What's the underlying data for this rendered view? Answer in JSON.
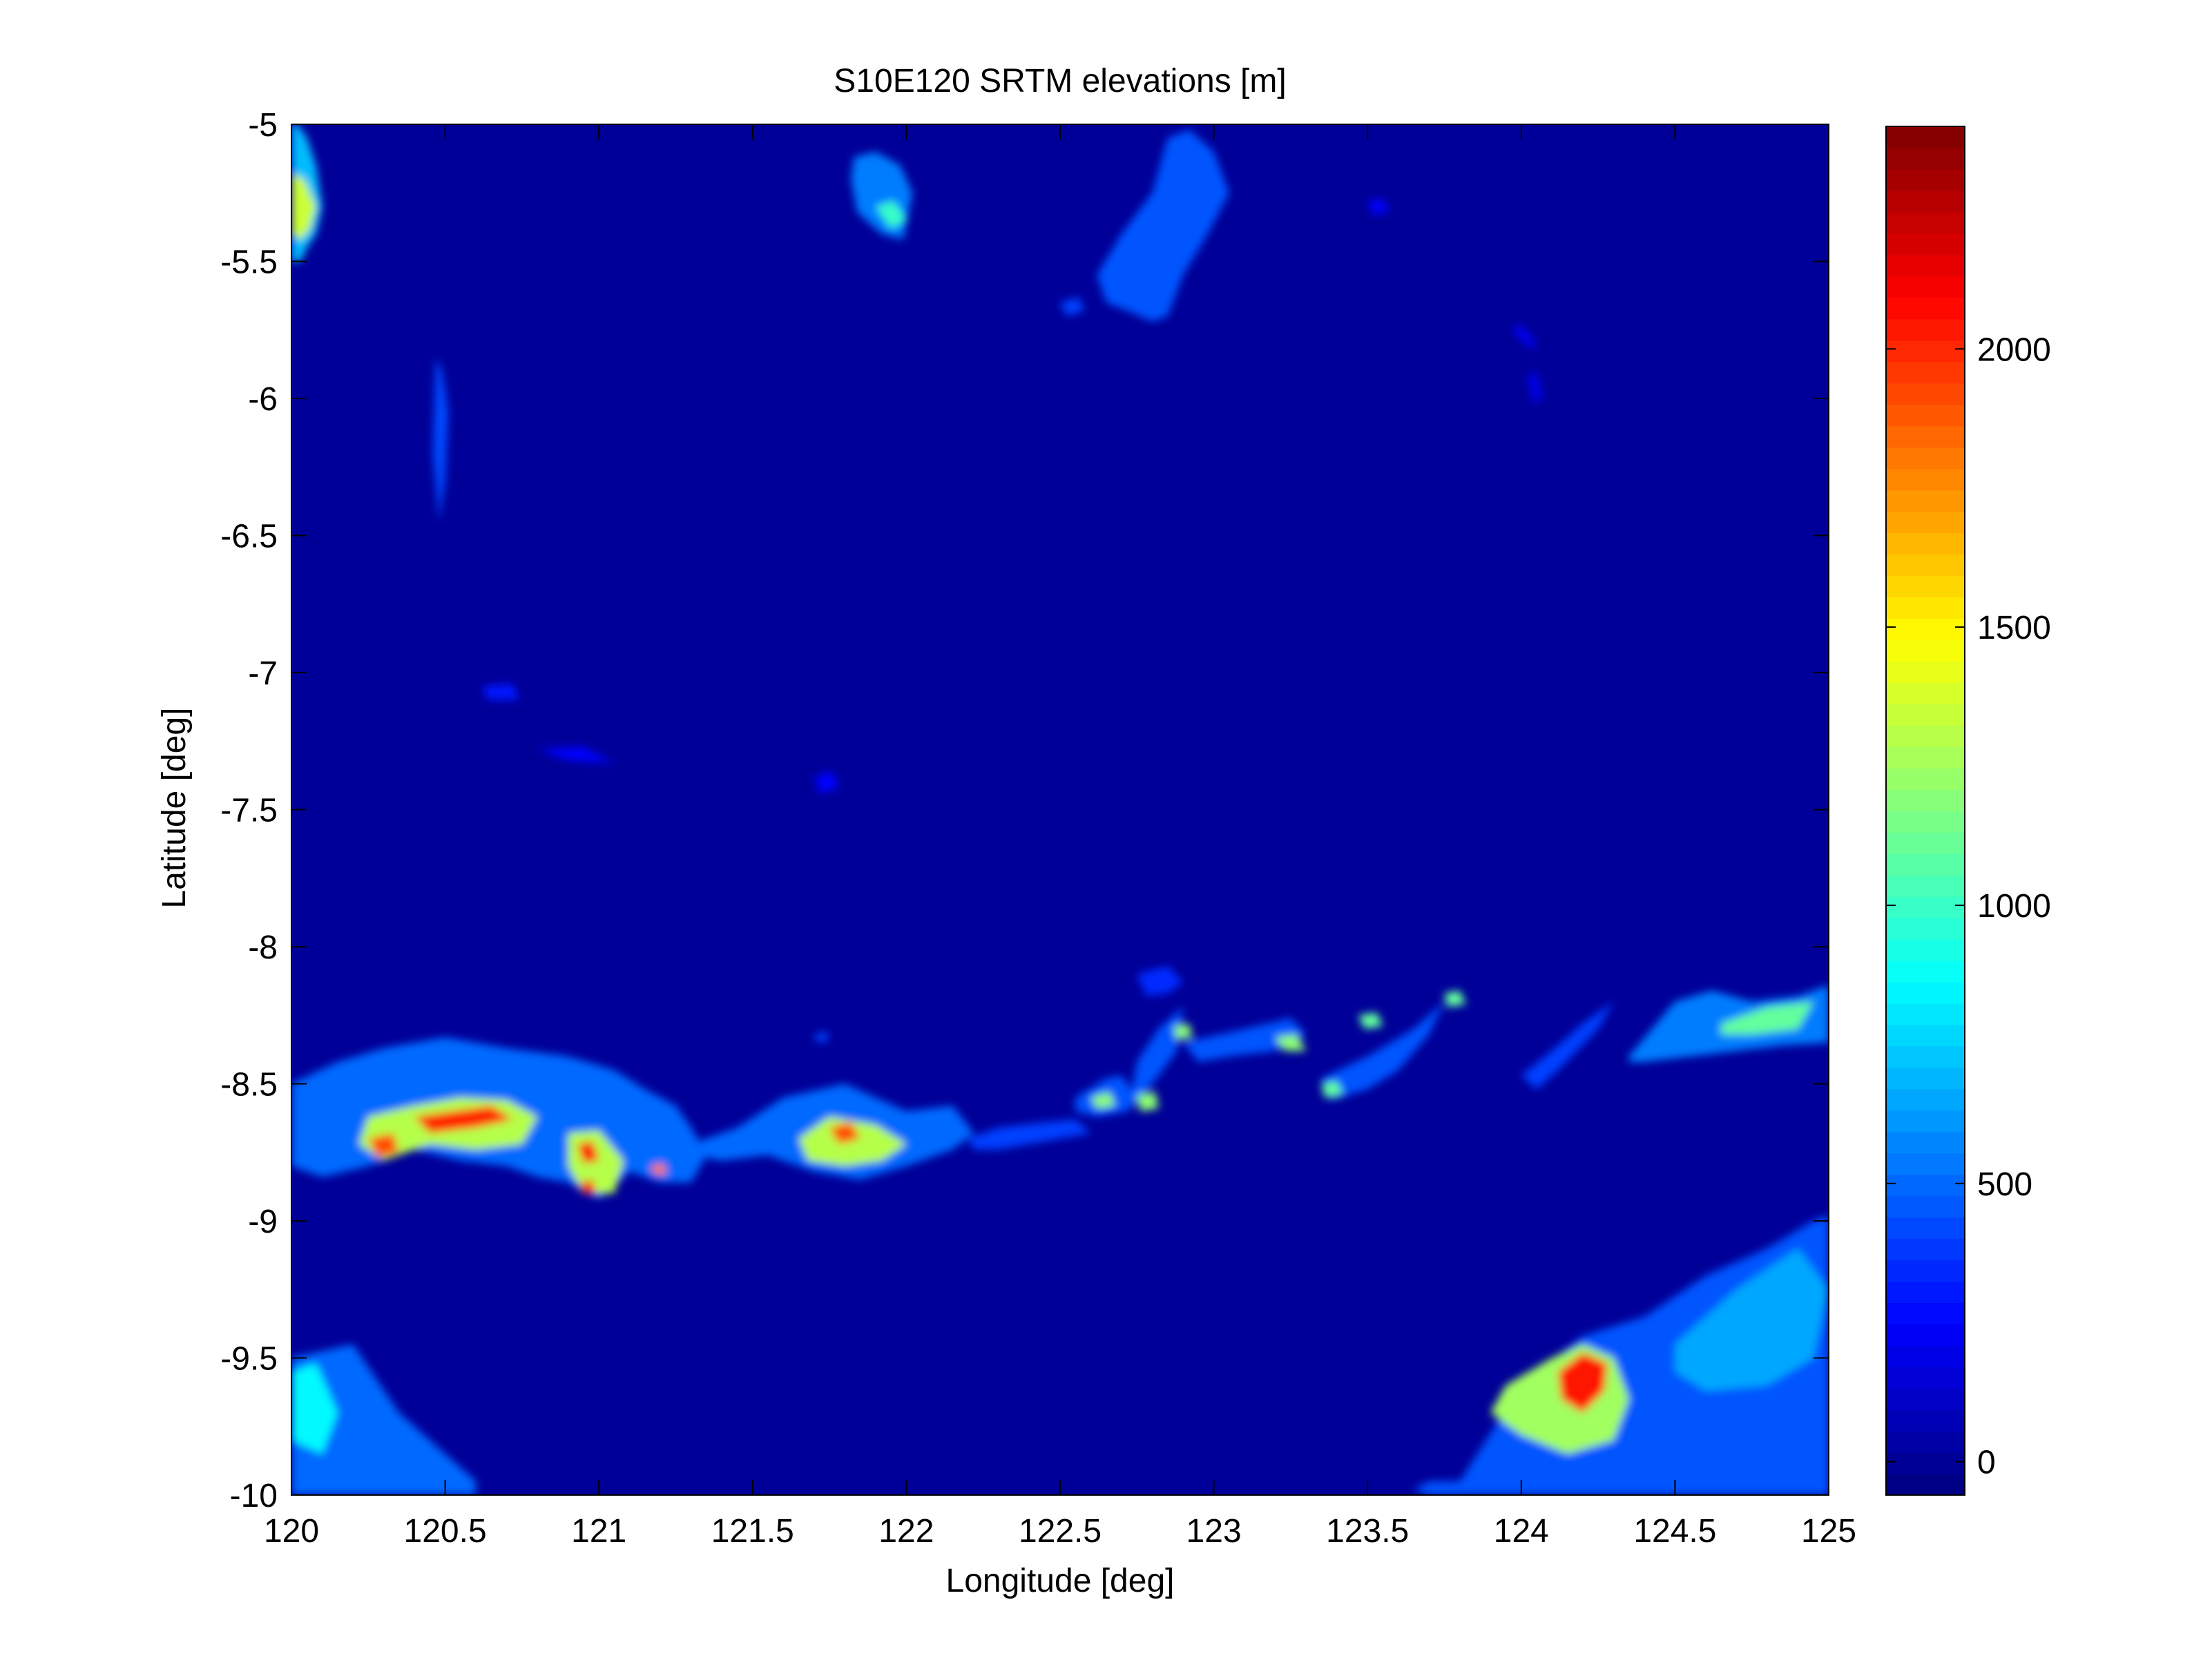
{
  "chart_data": {
    "type": "heatmap",
    "title": "S10E120 SRTM elevations [m]",
    "xlabel": "Longitude [deg]",
    "ylabel": "Latitude [deg]",
    "xlim": [
      120,
      125
    ],
    "ylim": [
      -10,
      -5
    ],
    "x_ticks": [
      120,
      120.5,
      121,
      121.5,
      122,
      122.5,
      123,
      123.5,
      124,
      124.5,
      125
    ],
    "x_tick_labels": [
      "120",
      "120.5",
      "121",
      "121.5",
      "122",
      "122.5",
      "123",
      "123.5",
      "124",
      "124.5",
      "125"
    ],
    "y_ticks": [
      -5,
      -5.5,
      -6,
      -6.5,
      -7,
      -7.5,
      -8,
      -8.5,
      -9,
      -9.5,
      -10
    ],
    "y_tick_labels": [
      "-5",
      "-5.5",
      "-6",
      "-6.5",
      "-7",
      "-7.5",
      "-8",
      "-8.5",
      "-9",
      "-9.5",
      "-10"
    ],
    "colormap": "jet",
    "background_value": 0,
    "colorbar": {
      "range": [
        -60,
        2400
      ],
      "ticks": [
        0,
        500,
        1000,
        1500,
        2000
      ],
      "tick_labels": [
        "0",
        "500",
        "1000",
        "1500",
        "2000"
      ]
    },
    "grid": false,
    "features": [
      {
        "lon": [
          120.0,
          120.02,
          120.05,
          120.08,
          120.1,
          120.08,
          120.05,
          120.03,
          120.0
        ],
        "lat": [
          -5.0,
          -5.0,
          -5.05,
          -5.15,
          -5.3,
          -5.4,
          -5.45,
          -5.5,
          -5.5
        ],
        "value": 700
      },
      {
        "lon": [
          120.0,
          120.04,
          120.08,
          120.06,
          120.03,
          120.0
        ],
        "lat": [
          -5.18,
          -5.2,
          -5.3,
          -5.38,
          -5.42,
          -5.4
        ],
        "value": 1350
      },
      {
        "lon": [
          120.47,
          120.49,
          120.51,
          120.5,
          120.48,
          120.46
        ],
        "lat": [
          -5.85,
          -5.9,
          -6.05,
          -6.3,
          -6.45,
          -6.2
        ],
        "value": 420
      },
      {
        "lon": [
          121.83,
          121.9,
          121.98,
          122.02,
          121.99,
          121.92,
          121.84,
          121.82
        ],
        "lat": [
          -5.12,
          -5.1,
          -5.15,
          -5.25,
          -5.42,
          -5.4,
          -5.32,
          -5.2
        ],
        "value": 550
      },
      {
        "lon": [
          121.9,
          121.96,
          122.0,
          121.95
        ],
        "lat": [
          -5.3,
          -5.28,
          -5.35,
          -5.38
        ],
        "value": 1000
      },
      {
        "lon": [
          122.62,
          122.7,
          122.8,
          122.85,
          122.92,
          123.0,
          123.05,
          122.98,
          122.9,
          122.85,
          122.8,
          122.72,
          122.65
        ],
        "lat": [
          -5.55,
          -5.4,
          -5.25,
          -5.05,
          -5.02,
          -5.1,
          -5.25,
          -5.4,
          -5.55,
          -5.7,
          -5.72,
          -5.68,
          -5.65
        ],
        "value": 450
      },
      {
        "lon": [
          122.5,
          122.56,
          122.58,
          122.52
        ],
        "lat": [
          -5.65,
          -5.63,
          -5.68,
          -5.7
        ],
        "value": 400
      },
      {
        "lon": [
          123.5,
          123.55,
          123.57,
          123.52
        ],
        "lat": [
          -5.28,
          -5.27,
          -5.32,
          -5.33
        ],
        "value": 250
      },
      {
        "lon": [
          123.97,
          124.0,
          124.05,
          124.03
        ],
        "lat": [
          -5.75,
          -5.73,
          -5.8,
          -5.82
        ],
        "value": 220
      },
      {
        "lon": [
          124.02,
          124.05,
          124.07,
          124.04
        ],
        "lat": [
          -5.92,
          -5.9,
          -6.0,
          -6.02
        ],
        "value": 200
      },
      {
        "lon": [
          120.62,
          120.72,
          120.74,
          120.64
        ],
        "lat": [
          -7.05,
          -7.04,
          -7.1,
          -7.1
        ],
        "value": 300
      },
      {
        "lon": [
          120.8,
          120.95,
          121.05,
          120.9
        ],
        "lat": [
          -7.28,
          -7.27,
          -7.33,
          -7.32
        ],
        "value": 250
      },
      {
        "lon": [
          121.7,
          121.76,
          121.78,
          121.72
        ],
        "lat": [
          -7.38,
          -7.36,
          -7.42,
          -7.44
        ],
        "value": 250
      },
      {
        "lon": [
          120.0,
          120.15,
          120.3,
          120.5,
          120.7,
          120.9,
          121.05,
          121.15,
          121.25,
          121.3,
          121.35,
          121.3,
          121.2,
          121.1,
          121.0,
          120.9,
          120.8,
          120.7,
          120.55,
          120.4,
          120.25,
          120.1,
          120.0
        ],
        "lat": [
          -8.5,
          -8.42,
          -8.37,
          -8.33,
          -8.37,
          -8.4,
          -8.45,
          -8.52,
          -8.58,
          -8.66,
          -8.76,
          -8.86,
          -8.86,
          -8.82,
          -8.92,
          -8.86,
          -8.84,
          -8.8,
          -8.78,
          -8.74,
          -8.8,
          -8.84,
          -8.8
        ],
        "value": 500
      },
      {
        "lon": [
          120.25,
          120.4,
          120.55,
          120.7,
          120.8,
          120.75,
          120.6,
          120.45,
          120.3,
          120.22
        ],
        "lat": [
          -8.62,
          -8.58,
          -8.55,
          -8.56,
          -8.62,
          -8.72,
          -8.74,
          -8.72,
          -8.78,
          -8.72
        ],
        "value": 1300
      },
      {
        "lon": [
          120.4,
          120.52,
          120.65,
          120.72,
          120.6,
          120.45
        ],
        "lat": [
          -8.62,
          -8.6,
          -8.58,
          -8.63,
          -8.66,
          -8.68
        ],
        "value": 2000
      },
      {
        "lon": [
          120.25,
          120.33,
          120.35,
          120.28
        ],
        "lat": [
          -8.7,
          -8.68,
          -8.75,
          -8.77
        ],
        "value": 1900
      },
      {
        "lon": [
          120.9,
          121.0,
          121.08,
          121.05,
          120.95,
          120.9
        ],
        "lat": [
          -8.68,
          -8.67,
          -8.78,
          -8.9,
          -8.9,
          -8.8
        ],
        "value": 1300
      },
      {
        "lon": [
          120.93,
          120.98,
          121.0,
          120.95
        ],
        "lat": [
          -8.72,
          -8.71,
          -8.78,
          -8.79
        ],
        "value": 2050
      },
      {
        "lon": [
          120.94,
          120.98,
          120.99,
          120.95
        ],
        "lat": [
          -8.86,
          -8.85,
          -8.9,
          -8.9
        ],
        "value": 2100
      },
      {
        "lon": [
          121.17,
          121.21,
          121.22,
          121.18
        ],
        "lat": [
          -8.8,
          -8.79,
          -8.83,
          -8.83
        ],
        "value": 1800
      },
      {
        "lon": [
          121.3,
          121.45,
          121.6,
          121.8,
          122.0,
          122.15,
          122.22,
          122.15,
          122.0,
          121.85,
          121.7,
          121.55,
          121.4,
          121.3
        ],
        "lat": [
          -8.72,
          -8.66,
          -8.55,
          -8.5,
          -8.6,
          -8.58,
          -8.68,
          -8.74,
          -8.8,
          -8.85,
          -8.82,
          -8.76,
          -8.78,
          -8.76
        ],
        "value": 500
      },
      {
        "lon": [
          121.65,
          121.75,
          121.9,
          122.0,
          121.92,
          121.8,
          121.68
        ],
        "lat": [
          -8.7,
          -8.62,
          -8.65,
          -8.72,
          -8.78,
          -8.8,
          -8.78
        ],
        "value": 1300
      },
      {
        "lon": [
          121.75,
          121.82,
          121.85,
          121.78
        ],
        "lat": [
          -8.66,
          -8.64,
          -8.7,
          -8.72
        ],
        "value": 1900
      },
      {
        "lon": [
          121.7,
          121.74,
          121.75,
          121.71
        ],
        "lat": [
          -8.32,
          -8.31,
          -8.34,
          -8.35
        ],
        "value": 400
      },
      {
        "lon": [
          122.2,
          122.3,
          122.45,
          122.55,
          122.6,
          122.5,
          122.4,
          122.3,
          122.22
        ],
        "lat": [
          -8.7,
          -8.66,
          -8.64,
          -8.63,
          -8.68,
          -8.7,
          -8.72,
          -8.74,
          -8.74
        ],
        "value": 400
      },
      {
        "lon": [
          122.55,
          122.65,
          122.7,
          122.75,
          122.72,
          122.62,
          122.55
        ],
        "lat": [
          -8.55,
          -8.48,
          -8.47,
          -8.55,
          -8.6,
          -8.62,
          -8.6
        ],
        "value": 450
      },
      {
        "lon": [
          122.6,
          122.66,
          122.68,
          122.62
        ],
        "lat": [
          -8.55,
          -8.53,
          -8.58,
          -8.59
        ],
        "value": 1200
      },
      {
        "lon": [
          122.75,
          122.85,
          122.9,
          122.85,
          122.78
        ],
        "lat": [
          -8.1,
          -8.07,
          -8.13,
          -8.17,
          -8.18
        ],
        "value": 350
      },
      {
        "lon": [
          122.75,
          122.82,
          122.9,
          122.88,
          122.8,
          122.72
        ],
        "lat": [
          -8.42,
          -8.3,
          -8.22,
          -8.38,
          -8.5,
          -8.6
        ],
        "value": 450
      },
      {
        "lon": [
          122.75,
          122.81,
          122.82,
          122.76
        ],
        "lat": [
          -8.54,
          -8.53,
          -8.59,
          -8.6
        ],
        "value": 1200
      },
      {
        "lon": [
          122.9,
          123.1,
          123.25,
          123.3,
          123.2,
          123.05,
          122.95
        ],
        "lat": [
          -8.35,
          -8.3,
          -8.26,
          -8.32,
          -8.38,
          -8.4,
          -8.42
        ],
        "value": 450
      },
      {
        "lon": [
          123.2,
          123.27,
          123.3,
          123.23
        ],
        "lat": [
          -8.33,
          -8.32,
          -8.38,
          -8.38
        ],
        "value": 1200
      },
      {
        "lon": [
          122.87,
          122.92,
          122.93,
          122.88
        ],
        "lat": [
          -8.29,
          -8.28,
          -8.33,
          -8.34
        ],
        "value": 1200
      },
      {
        "lon": [
          123.35,
          123.5,
          123.65,
          123.75,
          123.7,
          123.6,
          123.5,
          123.38
        ],
        "lat": [
          -8.48,
          -8.4,
          -8.3,
          -8.2,
          -8.32,
          -8.45,
          -8.52,
          -8.56
        ],
        "value": 450
      },
      {
        "lon": [
          123.47,
          123.53,
          123.55,
          123.49
        ],
        "lat": [
          -8.25,
          -8.24,
          -8.29,
          -8.3
        ],
        "value": 1100
      },
      {
        "lon": [
          123.35,
          123.4,
          123.42,
          123.36
        ],
        "lat": [
          -8.5,
          -8.49,
          -8.54,
          -8.55
        ],
        "value": 1100
      },
      {
        "lon": [
          123.75,
          123.8,
          123.82,
          123.76
        ],
        "lat": [
          -8.17,
          -8.16,
          -8.21,
          -8.22
        ],
        "value": 1100
      },
      {
        "lon": [
          124.0,
          124.12,
          124.2,
          124.3,
          124.25,
          124.12,
          124.05
        ],
        "lat": [
          -8.47,
          -8.36,
          -8.28,
          -8.2,
          -8.3,
          -8.45,
          -8.52
        ],
        "value": 400
      },
      {
        "lon": [
          124.35,
          124.5,
          124.62,
          124.75,
          124.9,
          125.0,
          125.0,
          124.85,
          124.7,
          124.55,
          124.4,
          124.35
        ],
        "lat": [
          -8.4,
          -8.2,
          -8.16,
          -8.2,
          -8.18,
          -8.14,
          -8.35,
          -8.36,
          -8.38,
          -8.4,
          -8.42,
          -8.42
        ],
        "value": 550
      },
      {
        "lon": [
          124.65,
          124.8,
          124.95,
          124.9,
          124.75,
          124.65
        ],
        "lat": [
          -8.28,
          -8.22,
          -8.2,
          -8.3,
          -8.32,
          -8.32
        ],
        "value": 1100
      },
      {
        "lon": [
          123.8,
          124.0,
          124.2,
          124.4,
          124.6,
          124.8,
          124.95,
          125.0,
          125.0,
          124.8,
          124.6,
          124.4,
          124.2,
          124.0,
          123.8,
          123.7,
          123.65,
          123.7
        ],
        "lat": [
          -9.95,
          -9.6,
          -9.42,
          -9.35,
          -9.2,
          -9.1,
          -9.0,
          -8.98,
          -10.0,
          -10.0,
          -10.0,
          -10.0,
          -10.0,
          -10.0,
          -10.0,
          -10.0,
          -9.98,
          -9.95
        ],
        "value": 450
      },
      {
        "lon": [
          123.95,
          124.1,
          124.2,
          124.3,
          124.35,
          124.3,
          124.15,
          124.0,
          123.9
        ],
        "lat": [
          -9.6,
          -9.5,
          -9.45,
          -9.5,
          -9.65,
          -9.8,
          -9.85,
          -9.78,
          -9.7
        ],
        "value": 1250
      },
      {
        "lon": [
          124.12,
          124.2,
          124.28,
          124.27,
          124.2,
          124.13
        ],
        "lat": [
          -9.55,
          -9.48,
          -9.52,
          -9.62,
          -9.7,
          -9.65
        ],
        "value": 2050
      },
      {
        "lon": [
          124.5,
          124.7,
          124.9,
          125.0,
          124.95,
          124.8,
          124.6,
          124.5
        ],
        "lat": [
          -9.45,
          -9.25,
          -9.1,
          -9.25,
          -9.5,
          -9.6,
          -9.62,
          -9.55
        ],
        "value": 650
      },
      {
        "lon": [
          120.0,
          120.2,
          120.35,
          120.6,
          120.6,
          120.0
        ],
        "lat": [
          -9.5,
          -9.45,
          -9.7,
          -9.95,
          -10.0,
          -10.0
        ],
        "value": 500
      },
      {
        "lon": [
          120.0,
          120.08,
          120.15,
          120.1,
          120.0
        ],
        "lat": [
          -9.55,
          -9.52,
          -9.7,
          -9.85,
          -9.8
        ],
        "value": 850
      }
    ]
  }
}
